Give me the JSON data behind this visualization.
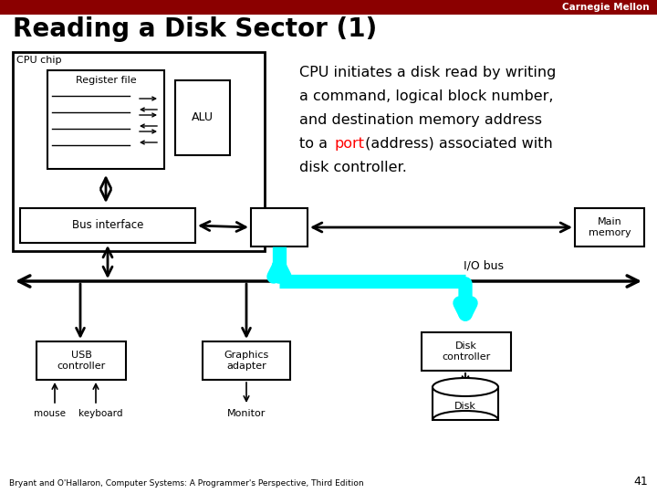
{
  "title": "Reading a Disk Sector (1)",
  "bg_color": "#ffffff",
  "header_color": "#8B0000",
  "header_text": "Carnegie Mellon",
  "footer_text": "Bryant and O'Hallaron, Computer Systems: A Programmer's Perspective, Third Edition",
  "page_number": "41",
  "cyan_color": "#00FFFF",
  "ann_line1": "CPU initiates a disk read by writing",
  "ann_line2": "a command, logical block number,",
  "ann_line3": "and destination memory address",
  "ann_line4a": "to a ",
  "ann_line4b": "port",
  "ann_line4c": " (address) associated with",
  "ann_line5": "disk controller."
}
